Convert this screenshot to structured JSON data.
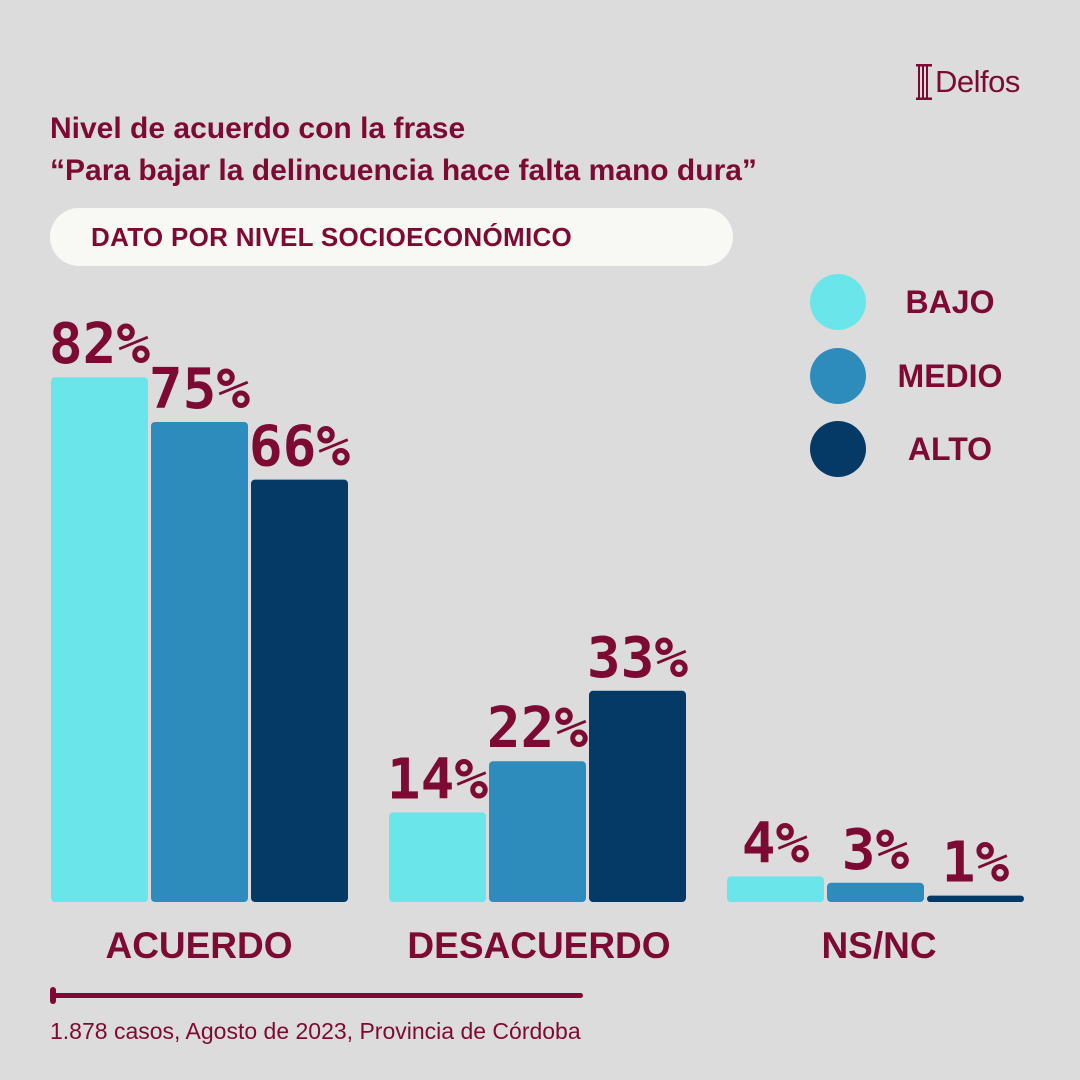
{
  "brand": {
    "name": "Delfos"
  },
  "title": {
    "line1": "Nivel de acuerdo con la frase",
    "line2": "“Para bajar la delincuencia hace falta mano dura”"
  },
  "subtitle": "DATO POR NIVEL SOCIOECONÓMICO",
  "legend": [
    {
      "label": "BAJO",
      "color": "#6ae6ea"
    },
    {
      "label": "MEDIO",
      "color": "#2e8cbd"
    },
    {
      "label": "ALTO",
      "color": "#053a67"
    }
  ],
  "chart_data": {
    "type": "bar",
    "categories": [
      "ACUERDO",
      "DESACUERDO",
      "NS/NC"
    ],
    "series": [
      {
        "name": "BAJO",
        "values": [
          82,
          14,
          4
        ],
        "color": "#6ae6ea"
      },
      {
        "name": "MEDIO",
        "values": [
          75,
          22,
          3
        ],
        "color": "#2e8cbd"
      },
      {
        "name": "ALTO",
        "values": [
          66,
          33,
          1
        ],
        "color": "#053a67"
      }
    ],
    "value_suffix": "%",
    "ylim": [
      0,
      100
    ],
    "title": "Nivel de acuerdo con la frase “Para bajar la delincuencia hace falta mano dura”",
    "legend_position": "top-right",
    "grid": false
  },
  "footer": "1.878 casos, Agosto de 2023, Provincia de Córdoba"
}
